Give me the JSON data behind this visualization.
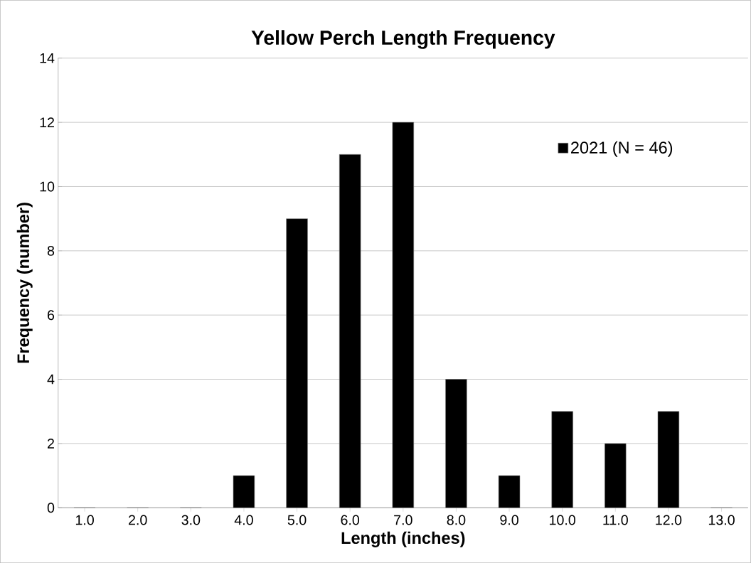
{
  "chart_data": {
    "type": "bar",
    "title": "Yellow Perch Length Frequency",
    "xlabel": "Length (inches)",
    "ylabel": "Frequency (number)",
    "categories": [
      "1.0",
      "2.0",
      "3.0",
      "4.0",
      "5.0",
      "6.0",
      "7.0",
      "8.0",
      "9.0",
      "10.0",
      "11.0",
      "12.0",
      "13.0"
    ],
    "series": [
      {
        "name": "2021 (N = 46)",
        "color": "#000000",
        "values": [
          0,
          0,
          0,
          1,
          9,
          11,
          12,
          4,
          1,
          3,
          2,
          3,
          0
        ]
      }
    ],
    "ylim": [
      0,
      14
    ],
    "yticks": [
      0,
      2,
      4,
      6,
      8,
      10,
      12,
      14
    ],
    "grid": "y",
    "legend": "top right"
  }
}
